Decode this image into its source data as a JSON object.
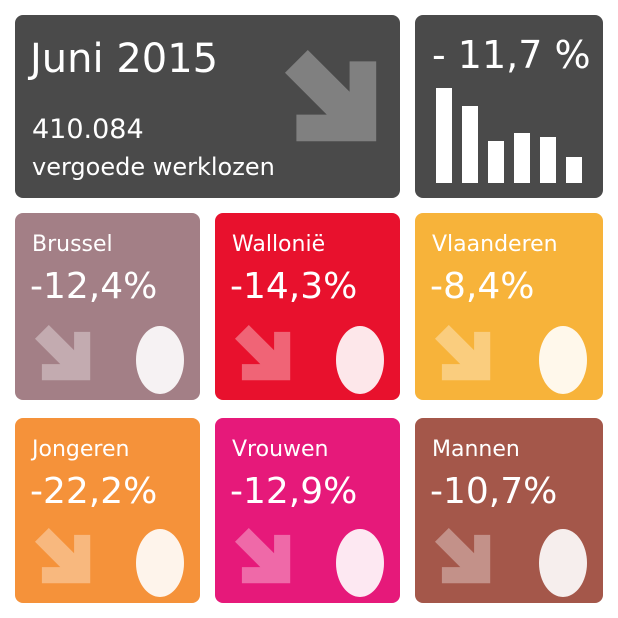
{
  "header": {
    "title": "Juni 2015",
    "count": "410.084",
    "label": "vergoede werklozen"
  },
  "summary": {
    "change": "- 11,7 %"
  },
  "tiles": [
    {
      "name": "Brussel",
      "change": "-12,4%",
      "color": "#a37f86"
    },
    {
      "name": "Wallonië",
      "change": "-14,3%",
      "color": "#e8112d"
    },
    {
      "name": "Vlaanderen",
      "change": "-8,4%",
      "color": "#f7b33a"
    },
    {
      "name": "Jongeren",
      "change": "-22,2%",
      "color": "#f5923a"
    },
    {
      "name": "Vrouwen",
      "change": "-12,9%",
      "color": "#e6197a"
    },
    {
      "name": "Mannen",
      "change": "-10,7%",
      "color": "#a4574a"
    }
  ]
}
